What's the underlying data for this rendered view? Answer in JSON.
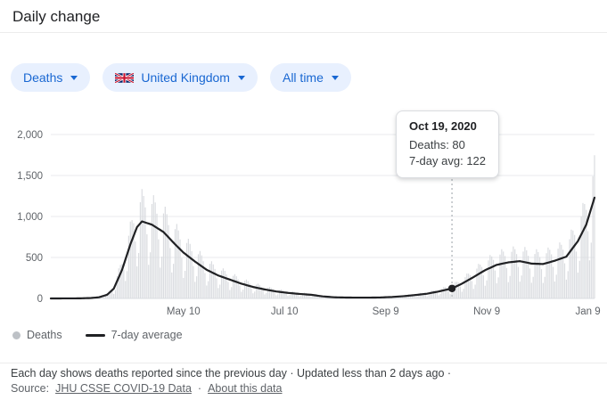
{
  "header": {
    "title": "Daily change"
  },
  "filters": {
    "metric": {
      "label": "Deaths"
    },
    "region": {
      "label": "United Kingdom",
      "flag": "uk-flag"
    },
    "range": {
      "label": "All time"
    }
  },
  "tooltip": {
    "date": "Oct 19, 2020",
    "deaths_line": "Deaths: 80",
    "avg_line": "7-day avg: 122"
  },
  "legend": {
    "items": [
      {
        "label": "Deaths",
        "marker": "dot",
        "color": "#bdc1c6"
      },
      {
        "label": "7-day average",
        "marker": "line",
        "color": "#202124"
      }
    ]
  },
  "footer": {
    "note": "Each day shows deaths reported since the previous day · Updated less than 2 days ago ·",
    "source_prefix": "Source:",
    "source_link": "JHU CSSE COVID-19 Data",
    "separator": "·",
    "about_link": "About this data"
  },
  "chart_data": {
    "type": "bar",
    "title": "Daily change",
    "subtitle": "Daily deaths with 7-day average, United Kingdom, all time",
    "series": [
      {
        "name": "Deaths",
        "type": "bar",
        "color": "#dadce0"
      },
      {
        "name": "7-day average",
        "type": "line",
        "color": "#202124"
      }
    ],
    "start_date": "2020-02-20",
    "end_date": "2021-01-13",
    "ylim": [
      0,
      2000
    ],
    "yticks": [
      0,
      500,
      1000,
      1500,
      2000
    ],
    "ytick_labels": [
      "0",
      "500",
      "1,000",
      "1,500",
      "2,000"
    ],
    "xticks": [
      [
        "2020-05-10",
        "May 10"
      ],
      [
        "2020-07-10",
        "Jul 10"
      ],
      [
        "2020-09-09",
        "Sep 9"
      ],
      [
        "2020-11-09",
        "Nov 9"
      ],
      [
        "2021-01-09",
        "Jan 9"
      ]
    ],
    "avg_anchors": [
      [
        "2020-02-20",
        0
      ],
      [
        "2020-03-08",
        1
      ],
      [
        "2020-03-15",
        5
      ],
      [
        "2020-03-20",
        14
      ],
      [
        "2020-03-25",
        45
      ],
      [
        "2020-03-29",
        120
      ],
      [
        "2020-04-03",
        350
      ],
      [
        "2020-04-08",
        660
      ],
      [
        "2020-04-12",
        870
      ],
      [
        "2020-04-15",
        940
      ],
      [
        "2020-04-21",
        900
      ],
      [
        "2020-04-28",
        810
      ],
      [
        "2020-05-05",
        660
      ],
      [
        "2020-05-10",
        560
      ],
      [
        "2020-05-17",
        450
      ],
      [
        "2020-05-24",
        350
      ],
      [
        "2020-05-31",
        280
      ],
      [
        "2020-06-07",
        230
      ],
      [
        "2020-06-14",
        180
      ],
      [
        "2020-06-21",
        140
      ],
      [
        "2020-06-28",
        110
      ],
      [
        "2020-07-05",
        85
      ],
      [
        "2020-07-12",
        68
      ],
      [
        "2020-07-19",
        55
      ],
      [
        "2020-07-26",
        45
      ],
      [
        "2020-08-02",
        25
      ],
      [
        "2020-08-09",
        14
      ],
      [
        "2020-08-16",
        11
      ],
      [
        "2020-08-23",
        10
      ],
      [
        "2020-08-30",
        10
      ],
      [
        "2020-09-06",
        12
      ],
      [
        "2020-09-13",
        18
      ],
      [
        "2020-09-20",
        28
      ],
      [
        "2020-09-27",
        42
      ],
      [
        "2020-10-04",
        58
      ],
      [
        "2020-10-11",
        85
      ],
      [
        "2020-10-19",
        122
      ],
      [
        "2020-10-25",
        180
      ],
      [
        "2020-11-01",
        260
      ],
      [
        "2020-11-08",
        345
      ],
      [
        "2020-11-15",
        410
      ],
      [
        "2020-11-22",
        440
      ],
      [
        "2020-11-29",
        455
      ],
      [
        "2020-12-06",
        425
      ],
      [
        "2020-12-13",
        420
      ],
      [
        "2020-12-20",
        460
      ],
      [
        "2020-12-27",
        510
      ],
      [
        "2021-01-03",
        700
      ],
      [
        "2021-01-08",
        900
      ],
      [
        "2021-01-13",
        1230
      ]
    ],
    "weekday_factors": [
      0.45,
      0.62,
      1.28,
      1.42,
      1.34,
      1.2,
      0.85
    ],
    "highlight": {
      "date": "2020-10-19",
      "label": "Oct 19, 2020",
      "deaths": 80,
      "avg": 122
    },
    "grid": true,
    "legend_position": "bottom-left"
  }
}
